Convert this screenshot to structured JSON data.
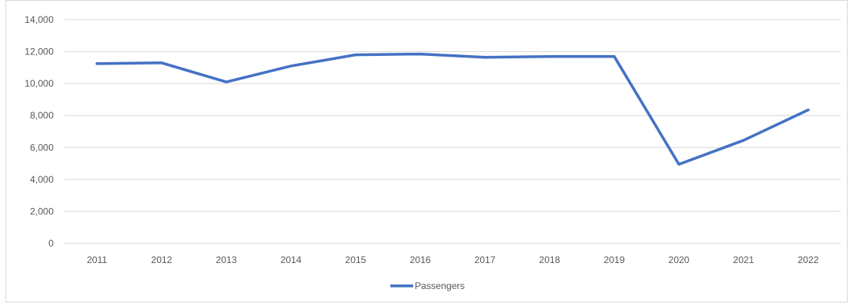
{
  "chart_data": {
    "type": "line",
    "categories": [
      "2011",
      "2012",
      "2013",
      "2014",
      "2015",
      "2016",
      "2017",
      "2018",
      "2019",
      "2020",
      "2021",
      "2022"
    ],
    "series": [
      {
        "name": "Passengers",
        "values": [
          11250,
          11300,
          10100,
          11100,
          11800,
          11850,
          11650,
          11700,
          11700,
          4950,
          6450,
          8350
        ],
        "color": "#4472c4"
      }
    ],
    "ylim": [
      0,
      14000
    ],
    "yticks": [
      0,
      2000,
      4000,
      6000,
      8000,
      10000,
      12000,
      14000
    ],
    "ytick_labels": [
      "0",
      "2,000",
      "4,000",
      "6,000",
      "8,000",
      "10,000",
      "12,000",
      "14,000"
    ],
    "grid": true,
    "legend": "bottom",
    "title": "",
    "xlabel": "",
    "ylabel": ""
  }
}
